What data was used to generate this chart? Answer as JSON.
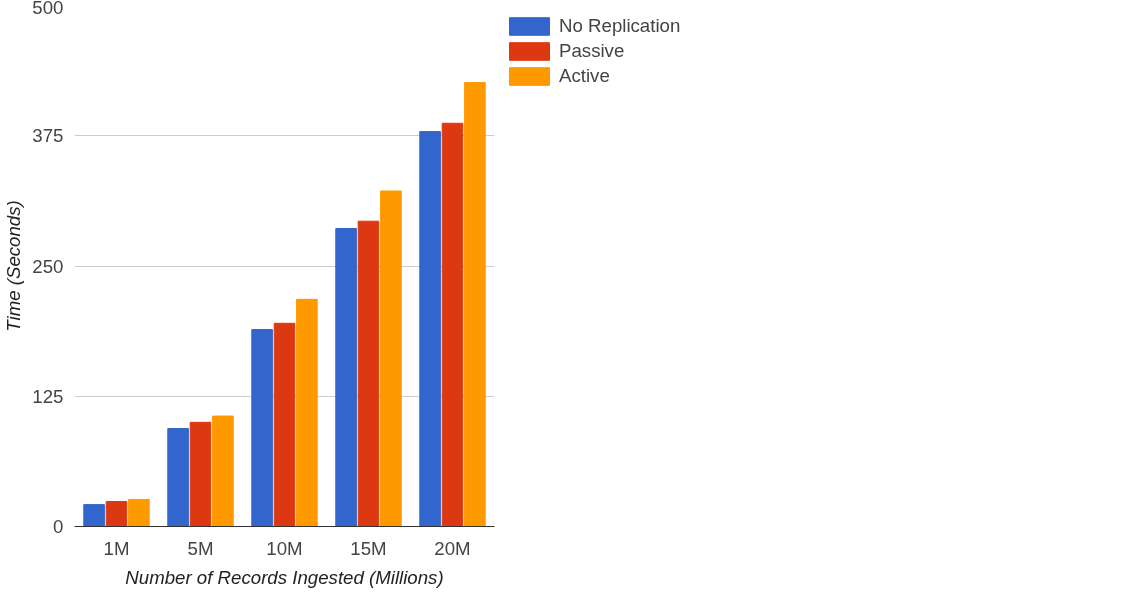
{
  "chart_data": {
    "type": "bar",
    "xlabel": "Number of Records Ingested (Millions)",
    "ylabel": "Time (Seconds)",
    "categories": [
      "1M",
      "5M",
      "10M",
      "15M",
      "20M"
    ],
    "series": [
      {
        "name": "No Replication",
        "color": "#3366cc",
        "values": [
          21,
          94,
          189,
          286,
          379
        ]
      },
      {
        "name": "Passive",
        "color": "#dc3912",
        "values": [
          24,
          100,
          195,
          293,
          387
        ]
      },
      {
        "name": "Active",
        "color": "#ff9900",
        "values": [
          26,
          106,
          218,
          322,
          426
        ]
      }
    ],
    "ylim": [
      0,
      500
    ],
    "yticks": [
      0,
      125,
      250,
      375,
      500
    ],
    "grid": "y",
    "legend": "top right"
  }
}
